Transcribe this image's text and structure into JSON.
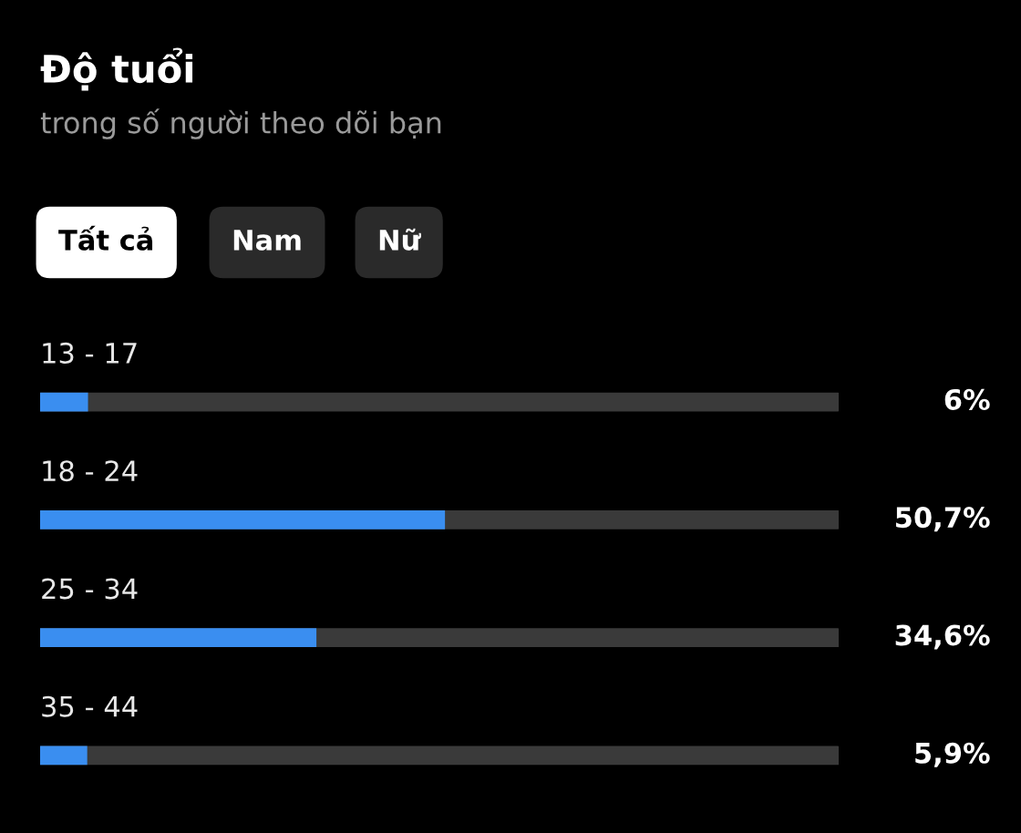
{
  "chart_data": {
    "type": "bar",
    "orientation": "horizontal",
    "title": "Độ tuổi",
    "subtitle": "trong số người theo dõi bạn",
    "annotations": [
      "Tất cả",
      "Nam",
      "Nữ"
    ],
    "categories": [
      "13 - 17",
      "18 - 24",
      "25 - 34",
      "35 - 44"
    ],
    "values": [
      6,
      50.7,
      34.6,
      5.9
    ],
    "value_labels": [
      "6%",
      "50,7%",
      "34,6%",
      "5,9%"
    ],
    "color": "#3a8ef0",
    "xlim": [
      0,
      100
    ]
  }
}
